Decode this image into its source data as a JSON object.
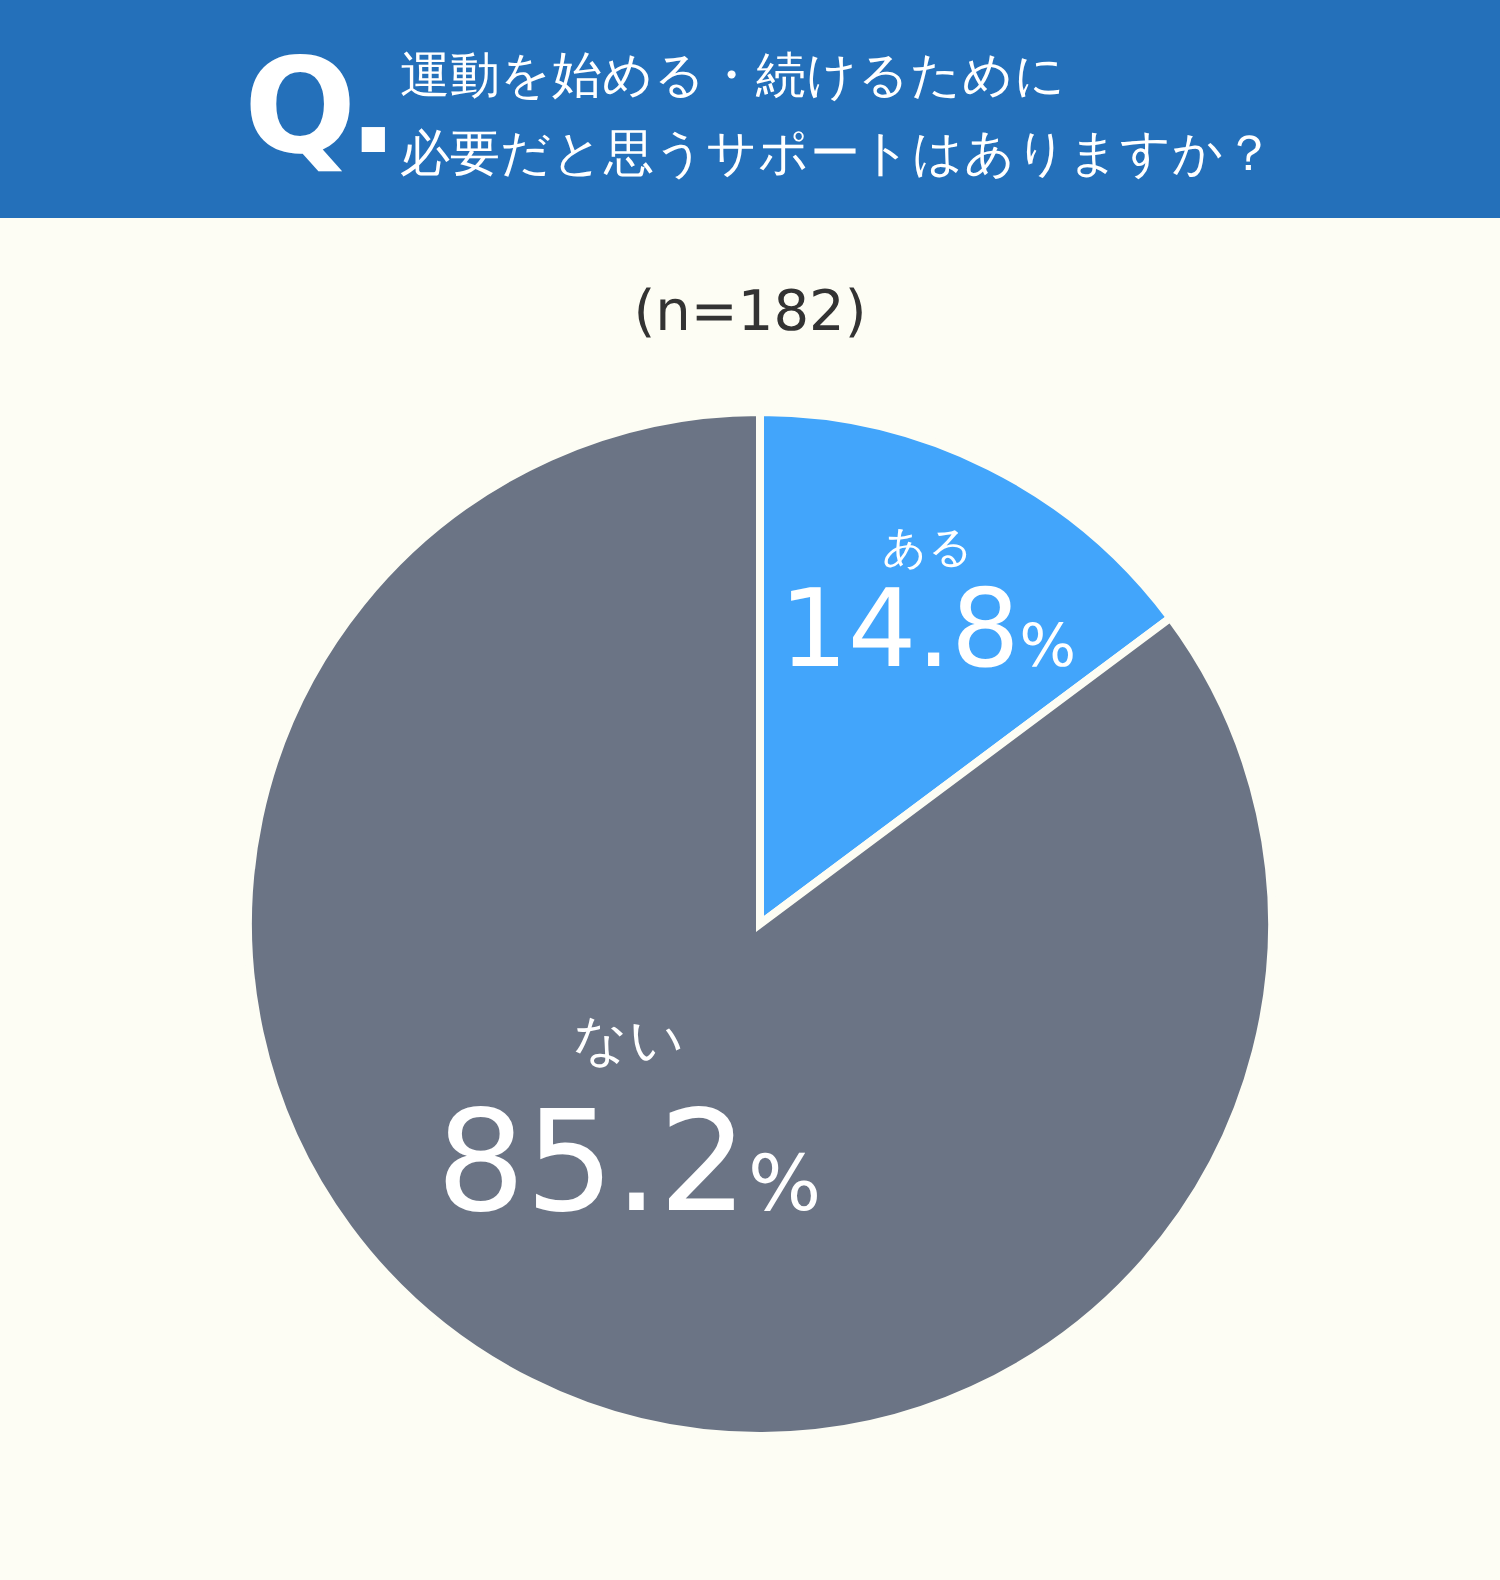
{
  "chart_data": {
    "type": "pie",
    "title": "運動を始める・続けるために必要だと思うサポートはありますか？",
    "subtitle": "(n=182)",
    "annotations": [
      "Q."
    ],
    "categories": [
      "ある",
      "ない"
    ],
    "values": [
      14.8,
      85.2
    ],
    "colors": [
      "#42a5fb",
      "#6b7485"
    ],
    "value_labels": [
      "14.8%",
      "85.2%"
    ]
  }
}
